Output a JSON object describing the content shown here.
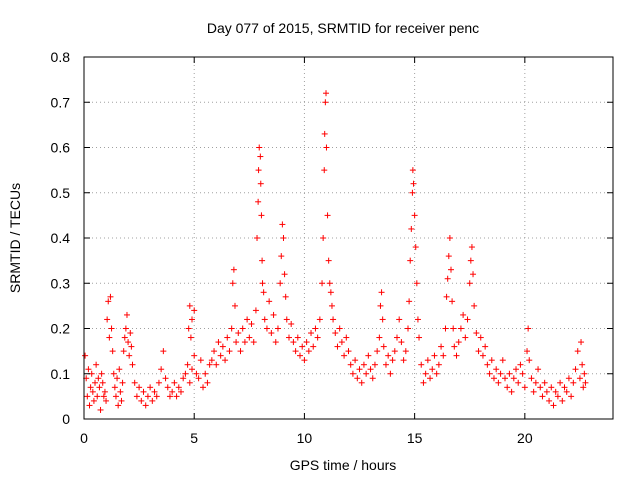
{
  "chart_data": {
    "type": "scatter",
    "title": "Day 077 of 2015, SRMTID for receiver penc",
    "xlabel": "GPS time / hours",
    "ylabel": "SRMTID / TECUs",
    "xlim": [
      0,
      24
    ],
    "ylim": [
      0,
      0.8
    ],
    "grid": true,
    "marker": "+",
    "color": "#ff0000",
    "xticks": [
      "0",
      "5",
      "10",
      "15",
      "20"
    ],
    "yticks": [
      "0",
      "0.1",
      "0.2",
      "0.3",
      "0.4",
      "0.5",
      "0.6",
      "0.7",
      "0.8"
    ],
    "series": [
      {
        "name": "SRMTID",
        "points": [
          [
            0.05,
            0.14
          ],
          [
            0.1,
            0.09
          ],
          [
            0.15,
            0.05
          ],
          [
            0.2,
            0.11
          ],
          [
            0.25,
            0.03
          ],
          [
            0.3,
            0.07
          ],
          [
            0.35,
            0.1
          ],
          [
            0.4,
            0.06
          ],
          [
            0.45,
            0.04
          ],
          [
            0.5,
            0.08
          ],
          [
            0.55,
            0.12
          ],
          [
            0.6,
            0.05
          ],
          [
            0.65,
            0.09
          ],
          [
            0.7,
            0.07
          ],
          [
            0.75,
            0.02
          ],
          [
            0.8,
            0.1
          ],
          [
            0.85,
            0.08
          ],
          [
            0.9,
            0.05
          ],
          [
            0.95,
            0.06
          ],
          [
            1.0,
            0.04
          ],
          [
            1.05,
            0.22
          ],
          [
            1.1,
            0.26
          ],
          [
            1.15,
            0.18
          ],
          [
            1.2,
            0.27
          ],
          [
            1.25,
            0.2
          ],
          [
            1.3,
            0.15
          ],
          [
            1.35,
            0.1
          ],
          [
            1.4,
            0.07
          ],
          [
            1.45,
            0.05
          ],
          [
            1.5,
            0.09
          ],
          [
            1.55,
            0.03
          ],
          [
            1.6,
            0.11
          ],
          [
            1.65,
            0.06
          ],
          [
            1.7,
            0.04
          ],
          [
            1.75,
            0.08
          ],
          [
            1.8,
            0.15
          ],
          [
            1.85,
            0.18
          ],
          [
            1.9,
            0.2
          ],
          [
            1.95,
            0.23
          ],
          [
            2.0,
            0.17
          ],
          [
            2.05,
            0.14
          ],
          [
            2.1,
            0.19
          ],
          [
            2.15,
            0.16
          ],
          [
            2.2,
            0.12
          ],
          [
            2.3,
            0.08
          ],
          [
            2.4,
            0.05
          ],
          [
            2.5,
            0.07
          ],
          [
            2.6,
            0.04
          ],
          [
            2.7,
            0.06
          ],
          [
            2.8,
            0.03
          ],
          [
            2.9,
            0.05
          ],
          [
            3.0,
            0.07
          ],
          [
            3.1,
            0.04
          ],
          [
            3.2,
            0.06
          ],
          [
            3.3,
            0.05
          ],
          [
            3.4,
            0.08
          ],
          [
            3.5,
            0.11
          ],
          [
            3.6,
            0.15
          ],
          [
            3.7,
            0.09
          ],
          [
            3.8,
            0.07
          ],
          [
            3.9,
            0.05
          ],
          [
            4.0,
            0.06
          ],
          [
            4.1,
            0.08
          ],
          [
            4.2,
            0.05
          ],
          [
            4.3,
            0.07
          ],
          [
            4.4,
            0.06
          ],
          [
            4.5,
            0.09
          ],
          [
            4.6,
            0.1
          ],
          [
            4.7,
            0.12
          ],
          [
            4.8,
            0.08
          ],
          [
            4.9,
            0.11
          ],
          [
            5.0,
            0.14
          ],
          [
            5.1,
            0.1
          ],
          [
            5.2,
            0.09
          ],
          [
            5.3,
            0.13
          ],
          [
            5.4,
            0.07
          ],
          [
            5.5,
            0.1
          ],
          [
            5.6,
            0.08
          ],
          [
            5.7,
            0.12
          ],
          [
            4.75,
            0.2
          ],
          [
            4.8,
            0.25
          ],
          [
            4.85,
            0.18
          ],
          [
            4.9,
            0.22
          ],
          [
            5.0,
            0.24
          ],
          [
            5.8,
            0.13
          ],
          [
            5.9,
            0.15
          ],
          [
            6.0,
            0.12
          ],
          [
            6.1,
            0.17
          ],
          [
            6.2,
            0.14
          ],
          [
            6.3,
            0.16
          ],
          [
            6.4,
            0.13
          ],
          [
            6.5,
            0.18
          ],
          [
            6.6,
            0.15
          ],
          [
            6.7,
            0.2
          ],
          [
            6.75,
            0.3
          ],
          [
            6.8,
            0.33
          ],
          [
            6.85,
            0.25
          ],
          [
            6.9,
            0.17
          ],
          [
            7.0,
            0.19
          ],
          [
            7.1,
            0.15
          ],
          [
            7.2,
            0.2
          ],
          [
            7.3,
            0.17
          ],
          [
            7.4,
            0.22
          ],
          [
            7.5,
            0.18
          ],
          [
            7.6,
            0.21
          ],
          [
            7.7,
            0.17
          ],
          [
            7.8,
            0.24
          ],
          [
            7.85,
            0.4
          ],
          [
            7.9,
            0.48
          ],
          [
            7.92,
            0.55
          ],
          [
            7.95,
            0.6
          ],
          [
            8.0,
            0.58
          ],
          [
            8.02,
            0.52
          ],
          [
            8.05,
            0.45
          ],
          [
            8.08,
            0.35
          ],
          [
            8.1,
            0.3
          ],
          [
            8.15,
            0.28
          ],
          [
            8.2,
            0.22
          ],
          [
            8.3,
            0.2
          ],
          [
            8.4,
            0.26
          ],
          [
            8.5,
            0.19
          ],
          [
            8.6,
            0.23
          ],
          [
            8.7,
            0.17
          ],
          [
            8.8,
            0.2
          ],
          [
            8.9,
            0.3
          ],
          [
            8.95,
            0.36
          ],
          [
            9.0,
            0.43
          ],
          [
            9.05,
            0.4
          ],
          [
            9.1,
            0.32
          ],
          [
            9.15,
            0.27
          ],
          [
            9.2,
            0.22
          ],
          [
            9.3,
            0.18
          ],
          [
            9.4,
            0.21
          ],
          [
            9.5,
            0.17
          ],
          [
            9.6,
            0.15
          ],
          [
            9.7,
            0.18
          ],
          [
            9.8,
            0.14
          ],
          [
            9.9,
            0.16
          ],
          [
            10.0,
            0.13
          ],
          [
            10.1,
            0.17
          ],
          [
            10.2,
            0.15
          ],
          [
            10.3,
            0.19
          ],
          [
            10.4,
            0.16
          ],
          [
            10.5,
            0.2
          ],
          [
            10.6,
            0.18
          ],
          [
            10.7,
            0.22
          ],
          [
            10.8,
            0.3
          ],
          [
            10.85,
            0.4
          ],
          [
            10.9,
            0.55
          ],
          [
            10.92,
            0.63
          ],
          [
            10.95,
            0.7
          ],
          [
            10.98,
            0.72
          ],
          [
            11.0,
            0.6
          ],
          [
            11.05,
            0.45
          ],
          [
            11.1,
            0.35
          ],
          [
            11.15,
            0.3
          ],
          [
            11.2,
            0.28
          ],
          [
            11.25,
            0.25
          ],
          [
            11.3,
            0.22
          ],
          [
            11.4,
            0.19
          ],
          [
            11.5,
            0.16
          ],
          [
            11.6,
            0.2
          ],
          [
            11.7,
            0.17
          ],
          [
            11.8,
            0.14
          ],
          [
            11.9,
            0.18
          ],
          [
            12.0,
            0.15
          ],
          [
            12.1,
            0.12
          ],
          [
            12.2,
            0.1
          ],
          [
            12.3,
            0.13
          ],
          [
            12.4,
            0.09
          ],
          [
            12.5,
            0.11
          ],
          [
            12.6,
            0.08
          ],
          [
            12.7,
            0.12
          ],
          [
            12.8,
            0.1
          ],
          [
            12.9,
            0.14
          ],
          [
            13.0,
            0.11
          ],
          [
            13.1,
            0.09
          ],
          [
            13.2,
            0.12
          ],
          [
            13.3,
            0.15
          ],
          [
            13.4,
            0.18
          ],
          [
            13.45,
            0.25
          ],
          [
            13.5,
            0.28
          ],
          [
            13.55,
            0.22
          ],
          [
            13.6,
            0.16
          ],
          [
            13.7,
            0.12
          ],
          [
            13.8,
            0.14
          ],
          [
            13.9,
            0.1
          ],
          [
            14.0,
            0.13
          ],
          [
            14.1,
            0.15
          ],
          [
            14.2,
            0.18
          ],
          [
            14.3,
            0.22
          ],
          [
            14.4,
            0.17
          ],
          [
            14.5,
            0.13
          ],
          [
            14.6,
            0.15
          ],
          [
            14.7,
            0.2
          ],
          [
            14.75,
            0.26
          ],
          [
            14.8,
            0.35
          ],
          [
            14.85,
            0.42
          ],
          [
            14.9,
            0.5
          ],
          [
            14.92,
            0.55
          ],
          [
            14.95,
            0.52
          ],
          [
            15.0,
            0.45
          ],
          [
            15.05,
            0.38
          ],
          [
            15.1,
            0.3
          ],
          [
            15.15,
            0.22
          ],
          [
            15.2,
            0.18
          ],
          [
            15.3,
            0.12
          ],
          [
            15.4,
            0.08
          ],
          [
            15.5,
            0.1
          ],
          [
            15.6,
            0.13
          ],
          [
            15.7,
            0.09
          ],
          [
            15.8,
            0.11
          ],
          [
            15.9,
            0.14
          ],
          [
            16.0,
            0.1
          ],
          [
            16.1,
            0.12
          ],
          [
            16.2,
            0.16
          ],
          [
            16.3,
            0.14
          ],
          [
            16.4,
            0.2
          ],
          [
            16.45,
            0.27
          ],
          [
            16.5,
            0.31
          ],
          [
            16.55,
            0.36
          ],
          [
            16.6,
            0.4
          ],
          [
            16.65,
            0.33
          ],
          [
            16.7,
            0.26
          ],
          [
            16.75,
            0.2
          ],
          [
            16.8,
            0.16
          ],
          [
            16.9,
            0.14
          ],
          [
            17.0,
            0.17
          ],
          [
            17.1,
            0.2
          ],
          [
            17.2,
            0.23
          ],
          [
            17.3,
            0.18
          ],
          [
            17.4,
            0.22
          ],
          [
            17.5,
            0.3
          ],
          [
            17.55,
            0.35
          ],
          [
            17.6,
            0.38
          ],
          [
            17.65,
            0.32
          ],
          [
            17.7,
            0.25
          ],
          [
            17.8,
            0.19
          ],
          [
            17.9,
            0.15
          ],
          [
            18.0,
            0.18
          ],
          [
            18.1,
            0.14
          ],
          [
            18.2,
            0.16
          ],
          [
            18.3,
            0.12
          ],
          [
            18.4,
            0.1
          ],
          [
            18.5,
            0.13
          ],
          [
            18.6,
            0.09
          ],
          [
            18.7,
            0.11
          ],
          [
            18.8,
            0.08
          ],
          [
            18.9,
            0.1
          ],
          [
            19.0,
            0.13
          ],
          [
            19.1,
            0.09
          ],
          [
            19.2,
            0.07
          ],
          [
            19.3,
            0.1
          ],
          [
            19.4,
            0.06
          ],
          [
            19.5,
            0.09
          ],
          [
            19.6,
            0.11
          ],
          [
            19.7,
            0.08
          ],
          [
            19.8,
            0.12
          ],
          [
            19.9,
            0.1
          ],
          [
            20.0,
            0.07
          ],
          [
            20.1,
            0.15
          ],
          [
            20.15,
            0.2
          ],
          [
            20.2,
            0.13
          ],
          [
            20.3,
            0.09
          ],
          [
            20.4,
            0.06
          ],
          [
            20.5,
            0.08
          ],
          [
            20.6,
            0.11
          ],
          [
            20.7,
            0.07
          ],
          [
            20.8,
            0.05
          ],
          [
            20.9,
            0.08
          ],
          [
            21.0,
            0.06
          ],
          [
            21.1,
            0.04
          ],
          [
            21.2,
            0.07
          ],
          [
            21.3,
            0.03
          ],
          [
            21.4,
            0.06
          ],
          [
            21.5,
            0.05
          ],
          [
            21.6,
            0.08
          ],
          [
            21.7,
            0.04
          ],
          [
            21.8,
            0.07
          ],
          [
            21.9,
            0.06
          ],
          [
            22.0,
            0.09
          ],
          [
            22.1,
            0.05
          ],
          [
            22.2,
            0.08
          ],
          [
            22.3,
            0.11
          ],
          [
            22.4,
            0.15
          ],
          [
            22.5,
            0.09
          ],
          [
            22.55,
            0.17
          ],
          [
            22.6,
            0.12
          ],
          [
            22.65,
            0.07
          ],
          [
            22.7,
            0.1
          ],
          [
            22.75,
            0.08
          ]
        ]
      }
    ]
  }
}
